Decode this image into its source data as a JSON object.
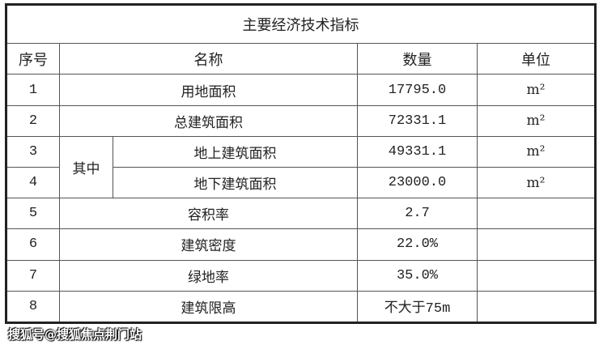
{
  "title": "主要经济技术指标",
  "headers": {
    "seq": "序号",
    "name": "名称",
    "qty": "数量",
    "unit": "单位"
  },
  "group_label": "其中",
  "rows": [
    {
      "seq": "1",
      "name": "用地面积",
      "qty": "17795.0",
      "unit": "m²"
    },
    {
      "seq": "2",
      "name": "总建筑面积",
      "qty": "72331.1",
      "unit": "m²"
    },
    {
      "seq": "3",
      "name": "地上建筑面积",
      "qty": "49331.1",
      "unit": "m²"
    },
    {
      "seq": "4",
      "name": "地下建筑面积",
      "qty": "23000.0",
      "unit": "m²"
    },
    {
      "seq": "5",
      "name": "容积率",
      "qty": "2.7",
      "unit": ""
    },
    {
      "seq": "6",
      "name": "建筑密度",
      "qty": "22.0%",
      "unit": ""
    },
    {
      "seq": "7",
      "name": "绿地率",
      "qty": "35.0%",
      "unit": ""
    },
    {
      "seq": "8",
      "name": "建筑限高",
      "qty": "不大于75m",
      "unit": ""
    }
  ],
  "watermark": "搜狐号@搜狐焦点荆门站"
}
